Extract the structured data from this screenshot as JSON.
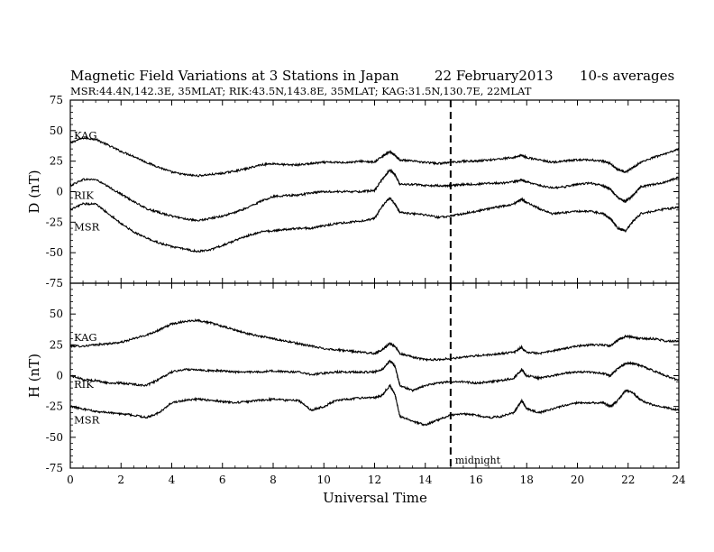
{
  "title": {
    "main": "Magnetic Field Variations at 3 Stations in Japan",
    "date": "22 February2013",
    "avg": "10-s averages",
    "stations": "MSR:44.4N,142.3E, 35MLAT;  RIK:43.5N,143.8E, 35MLAT;  KAG:31.5N,130.7E, 22MLAT"
  },
  "chart_data": [
    {
      "type": "line",
      "ylabel": "D (nT)",
      "ylim": [
        -75,
        75
      ],
      "yticks": [
        -75,
        -50,
        -25,
        0,
        25,
        50,
        75
      ],
      "xlim": [
        0,
        24
      ],
      "grid": false,
      "series": [
        {
          "name": "KAG",
          "x": [
            0,
            0.5,
            1,
            1.5,
            2,
            2.5,
            3,
            3.5,
            4,
            4.5,
            5,
            5.5,
            6,
            6.5,
            7,
            7.5,
            8,
            8.5,
            9,
            9.5,
            10,
            10.5,
            11,
            11.5,
            12,
            12.3,
            12.6,
            12.8,
            13,
            13.5,
            14,
            14.5,
            15,
            15.5,
            16,
            16.5,
            17,
            17.5,
            17.8,
            18,
            18.5,
            19,
            19.5,
            20,
            20.5,
            21,
            21.3,
            21.6,
            21.9,
            22.2,
            22.5,
            23,
            23.5,
            24
          ],
          "y": [
            40,
            44,
            43,
            38,
            33,
            29,
            24,
            20,
            16,
            14,
            13,
            14,
            15,
            17,
            19,
            22,
            23,
            22,
            22,
            23,
            24,
            24,
            24,
            25,
            24,
            29,
            33,
            30,
            26,
            25,
            24,
            23,
            24,
            25,
            25,
            26,
            27,
            28,
            30,
            28,
            26,
            24,
            25,
            26,
            26,
            25,
            23,
            18,
            16,
            20,
            24,
            28,
            31,
            35
          ]
        },
        {
          "name": "RIK",
          "x": [
            0,
            0.5,
            1,
            1.5,
            2,
            2.5,
            3,
            3.5,
            4,
            4.5,
            5,
            5.5,
            6,
            6.5,
            7,
            7.5,
            8,
            8.5,
            9,
            9.5,
            10,
            10.5,
            11,
            11.5,
            12,
            12.3,
            12.6,
            12.8,
            13,
            13.5,
            14,
            14.5,
            15,
            15.5,
            16,
            16.5,
            17,
            17.5,
            17.8,
            18,
            18.5,
            19,
            19.5,
            20,
            20.5,
            21,
            21.3,
            21.6,
            21.9,
            22.2,
            22.5,
            23,
            23.5,
            24
          ],
          "y": [
            5,
            10,
            10,
            4,
            -2,
            -8,
            -14,
            -17,
            -20,
            -22,
            -24,
            -22,
            -20,
            -17,
            -13,
            -8,
            -4,
            -3,
            -3,
            -1,
            0,
            0,
            0,
            0,
            1,
            10,
            18,
            14,
            6,
            6,
            5,
            5,
            5,
            6,
            6,
            7,
            7,
            8,
            10,
            8,
            5,
            3,
            4,
            6,
            7,
            5,
            2,
            -5,
            -8,
            -3,
            4,
            6,
            8,
            12
          ]
        },
        {
          "name": "MSR",
          "x": [
            0,
            0.5,
            1,
            1.5,
            2,
            2.5,
            3,
            3.5,
            4,
            4.5,
            5,
            5.5,
            6,
            6.5,
            7,
            7.5,
            8,
            8.5,
            9,
            9.5,
            10,
            10.5,
            11,
            11.5,
            12,
            12.3,
            12.6,
            12.8,
            13,
            13.5,
            14,
            14.5,
            15,
            15.5,
            16,
            16.5,
            17,
            17.5,
            17.8,
            18,
            18.5,
            19,
            19.5,
            20,
            20.5,
            21,
            21.3,
            21.6,
            21.9,
            22.2,
            22.5,
            23,
            23.5,
            24
          ],
          "y": [
            -15,
            -10,
            -10,
            -18,
            -26,
            -33,
            -38,
            -42,
            -45,
            -47,
            -49,
            -48,
            -44,
            -40,
            -36,
            -33,
            -32,
            -31,
            -30,
            -30,
            -28,
            -26,
            -25,
            -24,
            -22,
            -12,
            -5,
            -10,
            -17,
            -18,
            -19,
            -21,
            -20,
            -18,
            -16,
            -14,
            -12,
            -10,
            -6,
            -9,
            -14,
            -18,
            -17,
            -16,
            -16,
            -18,
            -22,
            -30,
            -32,
            -24,
            -18,
            -16,
            -14,
            -13
          ]
        }
      ],
      "annotations": [
        {
          "text": "midnight",
          "x": 15,
          "dashed_line": true
        }
      ]
    },
    {
      "type": "line",
      "ylabel": "H (nT)",
      "xlabel": "Universal Time",
      "ylim": [
        -75,
        75
      ],
      "yticks": [
        -75,
        -50,
        -25,
        0,
        25,
        50
      ],
      "xlim": [
        0,
        24
      ],
      "xticks": [
        0,
        2,
        4,
        6,
        8,
        10,
        12,
        14,
        16,
        18,
        20,
        22,
        24
      ],
      "grid": false,
      "series": [
        {
          "name": "KAG",
          "x": [
            0,
            0.5,
            1,
            1.5,
            2,
            2.5,
            3,
            3.5,
            4,
            4.5,
            5,
            5.5,
            6,
            6.5,
            7,
            7.5,
            8,
            8.5,
            9,
            9.5,
            10,
            10.5,
            11,
            11.5,
            12,
            12.3,
            12.6,
            12.8,
            13,
            13.5,
            14,
            14.5,
            15,
            15.5,
            16,
            16.5,
            17,
            17.5,
            17.8,
            18,
            18.5,
            19,
            19.5,
            20,
            20.5,
            21,
            21.3,
            21.6,
            21.9,
            22.2,
            22.5,
            23,
            23.5,
            24
          ],
          "y": [
            24,
            24,
            25,
            26,
            27,
            30,
            33,
            37,
            42,
            44,
            45,
            43,
            40,
            37,
            34,
            32,
            30,
            28,
            26,
            24,
            22,
            21,
            20,
            19,
            18,
            21,
            26,
            24,
            18,
            15,
            13,
            13,
            14,
            15,
            16,
            17,
            18,
            19,
            23,
            19,
            18,
            20,
            22,
            24,
            25,
            25,
            24,
            29,
            32,
            31,
            30,
            30,
            28,
            28
          ]
        },
        {
          "name": "RIK",
          "x": [
            0,
            0.5,
            1,
            1.5,
            2,
            2.5,
            3,
            3.5,
            4,
            4.5,
            5,
            5.5,
            6,
            6.5,
            7,
            7.5,
            8,
            8.5,
            9,
            9.5,
            10,
            10.5,
            11,
            11.5,
            12,
            12.3,
            12.6,
            12.8,
            13,
            13.5,
            14,
            14.5,
            15,
            15.5,
            16,
            16.5,
            17,
            17.5,
            17.8,
            18,
            18.5,
            19,
            19.5,
            20,
            20.5,
            21,
            21.3,
            21.6,
            21.9,
            22.2,
            22.5,
            23,
            23.5,
            24
          ],
          "y": [
            0,
            -3,
            -4,
            -6,
            -6,
            -7,
            -8,
            -3,
            3,
            5,
            5,
            4,
            4,
            3,
            3,
            3,
            4,
            3,
            3,
            1,
            2,
            3,
            3,
            3,
            3,
            5,
            12,
            8,
            -8,
            -12,
            -8,
            -6,
            -5,
            -5,
            -6,
            -5,
            -4,
            -2,
            5,
            0,
            -2,
            0,
            2,
            3,
            3,
            2,
            0,
            6,
            10,
            10,
            8,
            4,
            0,
            -4
          ]
        },
        {
          "name": "MSR",
          "x": [
            0,
            0.5,
            1,
            1.5,
            2,
            2.5,
            3,
            3.5,
            4,
            4.5,
            5,
            5.5,
            6,
            6.5,
            7,
            7.5,
            8,
            8.5,
            9,
            9.5,
            10,
            10.5,
            11,
            11.5,
            12,
            12.3,
            12.6,
            12.8,
            13,
            13.5,
            14,
            14.5,
            15,
            15.5,
            16,
            16.5,
            17,
            17.5,
            17.8,
            18,
            18.5,
            19,
            19.5,
            20,
            20.5,
            21,
            21.3,
            21.6,
            21.9,
            22.2,
            22.5,
            23,
            23.5,
            24
          ],
          "y": [
            -25,
            -27,
            -29,
            -30,
            -31,
            -32,
            -34,
            -30,
            -22,
            -20,
            -19,
            -20,
            -21,
            -22,
            -21,
            -20,
            -19,
            -20,
            -20,
            -28,
            -25,
            -20,
            -19,
            -18,
            -18,
            -16,
            -8,
            -15,
            -33,
            -37,
            -40,
            -36,
            -32,
            -31,
            -32,
            -34,
            -33,
            -30,
            -20,
            -27,
            -30,
            -27,
            -24,
            -22,
            -22,
            -22,
            -25,
            -20,
            -12,
            -14,
            -20,
            -24,
            -26,
            -28
          ]
        }
      ],
      "annotations": [
        {
          "text": "midnight",
          "x": 15,
          "dashed_line": true
        }
      ]
    }
  ]
}
